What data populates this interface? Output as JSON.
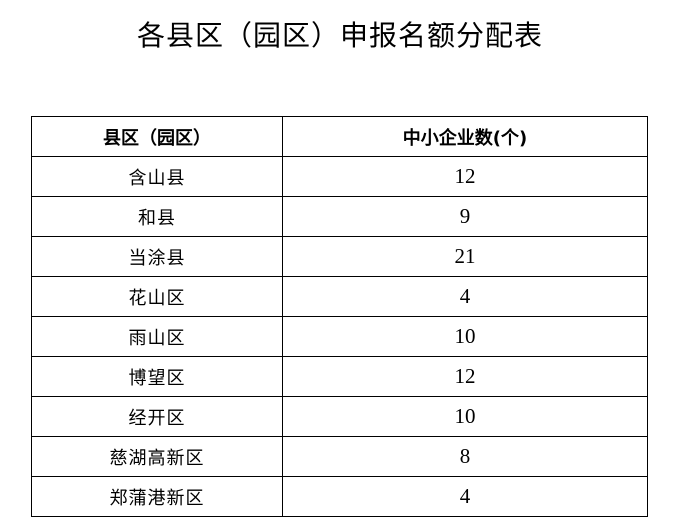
{
  "title": "各县区（园区）申报名额分配表",
  "table": {
    "headers": [
      "县区（园区）",
      "中小企业数(个)"
    ],
    "rows": [
      {
        "area": "含山县",
        "count": "12"
      },
      {
        "area": "和县",
        "count": "9"
      },
      {
        "area": "当涂县",
        "count": "21"
      },
      {
        "area": "花山区",
        "count": "4"
      },
      {
        "area": "雨山区",
        "count": "10"
      },
      {
        "area": "博望区",
        "count": "12"
      },
      {
        "area": "经开区",
        "count": "10"
      },
      {
        "area": "慈湖高新区",
        "count": "8"
      },
      {
        "area": "郑蒲港新区",
        "count": "4"
      }
    ]
  }
}
